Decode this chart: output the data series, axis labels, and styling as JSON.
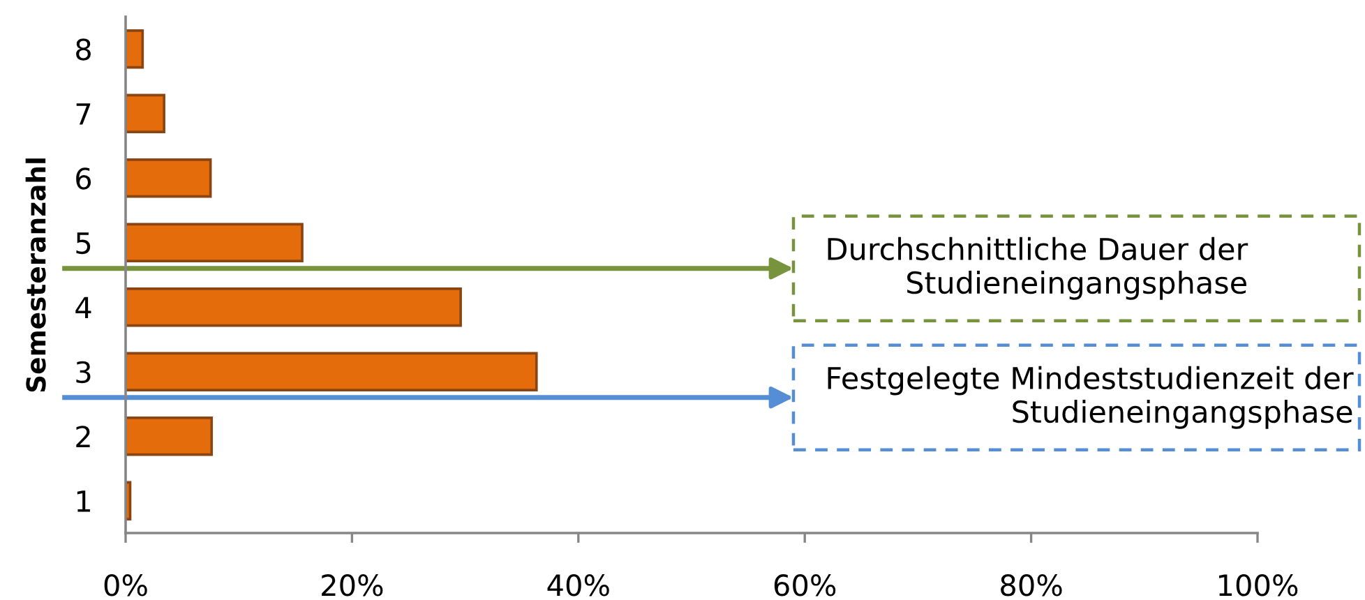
{
  "chart_data": {
    "type": "bar",
    "orientation": "horizontal",
    "ylabel": "Semesteranzahl",
    "x": [
      1,
      2,
      3,
      4,
      5,
      6,
      7,
      8
    ],
    "values": [
      0.4,
      7.6,
      36.3,
      29.6,
      15.6,
      7.5,
      3.4,
      1.5
    ],
    "color": "#e46c0a",
    "xlim": [
      0,
      100
    ],
    "xticks": [
      {
        "value": 0,
        "label": "0%"
      },
      {
        "value": 20,
        "label": "20%"
      },
      {
        "value": 40,
        "label": "40%"
      },
      {
        "value": 60,
        "label": "60%"
      },
      {
        "value": 80,
        "label": "80%"
      },
      {
        "value": 100,
        "label": "100%"
      }
    ],
    "ylim": [
      0.5,
      8.5
    ],
    "yticks": [
      1,
      2,
      3,
      4,
      5,
      6,
      7,
      8
    ],
    "ref_lines": [
      {
        "axis": "y",
        "value": 4.6,
        "label": "Durchschnittliche Dauer der\nStudieneingangsphase",
        "color": "#77933c",
        "line_style": "solid"
      },
      {
        "axis": "y",
        "value": 2.6,
        "label": "Festgelegte Mindeststudienzeit der\nStudieneingangsphase",
        "color": "#558ed5",
        "line_style": "solid"
      }
    ]
  }
}
